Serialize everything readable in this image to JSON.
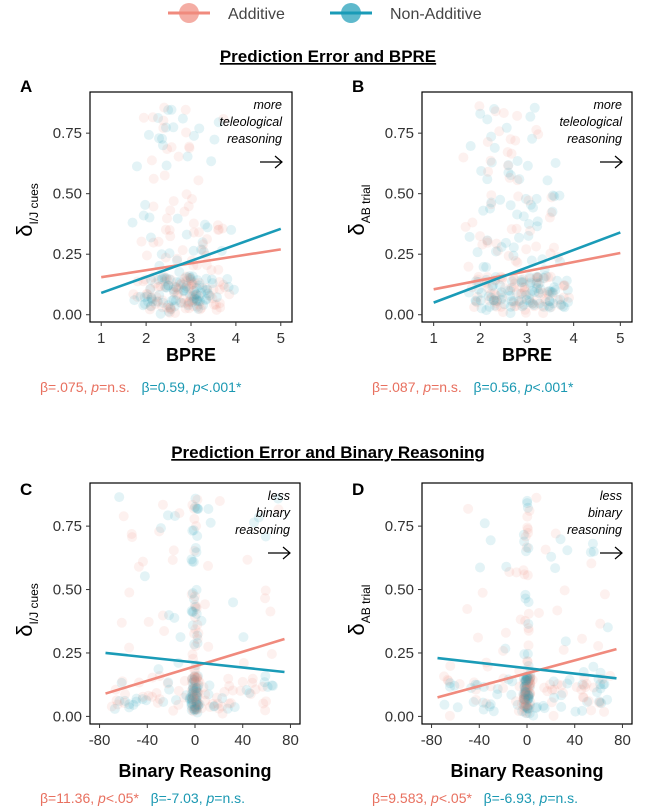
{
  "colors": {
    "additive": "#F08A7D",
    "non_additive": "#1A9BB7",
    "additive_text": "#E8705F",
    "non_additive_text": "#1A98B2"
  },
  "legend": [
    "Additive",
    "Non-Additive"
  ],
  "sections": [
    {
      "title": "Prediction Error and BPRE"
    },
    {
      "title": "Prediction Error and Binary Reasoning"
    }
  ],
  "chart_data": [
    {
      "panel": "A",
      "type": "scatter",
      "xlabel": "BPRE",
      "ylabel": "δ",
      "ylabel_sub": "I/J cues",
      "xlim": [
        0.75,
        5.25
      ],
      "ylim": [
        -0.03,
        0.92
      ],
      "xticks": [
        1,
        2,
        3,
        4,
        5
      ],
      "yticks": [
        "0.00",
        "0.25",
        "0.50",
        "0.75"
      ],
      "annotation": [
        "more",
        "teleological",
        "reasoning"
      ],
      "series": [
        {
          "name": "Additive",
          "fit": {
            "x": [
              1,
              5
            ],
            "y": [
              0.155,
              0.27
            ]
          }
        },
        {
          "name": "Non-Additive",
          "fit": {
            "x": [
              1,
              5
            ],
            "y": [
              0.09,
              0.355
            ]
          }
        }
      ],
      "stats": {
        "additive": {
          "beta": "β=.075, ",
          "p_sym": "p",
          "p_val": "=n.s."
        },
        "non_additive": {
          "beta": "β=0.59, ",
          "p_sym": "p",
          "p_val": "<.001*"
        }
      }
    },
    {
      "panel": "B",
      "type": "scatter",
      "xlabel": "BPRE",
      "ylabel": "δ",
      "ylabel_sub": "AB trial",
      "xlim": [
        0.75,
        5.25
      ],
      "ylim": [
        -0.03,
        0.92
      ],
      "xticks": [
        1,
        2,
        3,
        4,
        5
      ],
      "yticks": [
        "0.00",
        "0.25",
        "0.50",
        "0.75"
      ],
      "annotation": [
        "more",
        "teleological",
        "reasoning"
      ],
      "series": [
        {
          "name": "Additive",
          "fit": {
            "x": [
              1,
              5
            ],
            "y": [
              0.105,
              0.255
            ]
          }
        },
        {
          "name": "Non-Additive",
          "fit": {
            "x": [
              1,
              5
            ],
            "y": [
              0.05,
              0.34
            ]
          }
        }
      ],
      "stats": {
        "additive": {
          "beta": "β=.087, ",
          "p_sym": "p",
          "p_val": "=n.s."
        },
        "non_additive": {
          "beta": "β=0.56, ",
          "p_sym": "p",
          "p_val": "<.001*"
        }
      }
    },
    {
      "panel": "C",
      "type": "scatter",
      "xlabel": "Binary Reasoning",
      "ylabel": "δ",
      "ylabel_sub": "I/J cues",
      "xlim": [
        -88,
        88
      ],
      "ylim": [
        -0.03,
        0.92
      ],
      "xticks": [
        -80,
        -40,
        0,
        40,
        80
      ],
      "yticks": [
        "0.00",
        "0.25",
        "0.50",
        "0.75"
      ],
      "annotation": [
        "less",
        "binary",
        "reasoning"
      ],
      "series": [
        {
          "name": "Additive",
          "fit": {
            "x": [
              -75,
              75
            ],
            "y": [
              0.09,
              0.305
            ]
          }
        },
        {
          "name": "Non-Additive",
          "fit": {
            "x": [
              -75,
              75
            ],
            "y": [
              0.25,
              0.175
            ]
          }
        }
      ],
      "stats": {
        "additive": {
          "beta": "β=11.36, ",
          "p_sym": "p",
          "p_val": "<.05*"
        },
        "non_additive": {
          "beta": "β=-7.03, ",
          "p_sym": "p",
          "p_val": "=n.s."
        }
      }
    },
    {
      "panel": "D",
      "type": "scatter",
      "xlabel": "Binary Reasoning",
      "ylabel": "δ",
      "ylabel_sub": "AB trial",
      "xlim": [
        -88,
        88
      ],
      "ylim": [
        -0.03,
        0.92
      ],
      "xticks": [
        -80,
        -40,
        0,
        40,
        80
      ],
      "yticks": [
        "0.00",
        "0.25",
        "0.50",
        "0.75"
      ],
      "annotation": [
        "less",
        "binary",
        "reasoning"
      ],
      "series": [
        {
          "name": "Additive",
          "fit": {
            "x": [
              -75,
              75
            ],
            "y": [
              0.075,
              0.265
            ]
          }
        },
        {
          "name": "Non-Additive",
          "fit": {
            "x": [
              -75,
              75
            ],
            "y": [
              0.23,
              0.15
            ]
          }
        }
      ],
      "stats": {
        "additive": {
          "beta": "β=9.583, ",
          "p_sym": "p",
          "p_val": "<.05*"
        },
        "non_additive": {
          "beta": "β=-6.93, ",
          "p_sym": "p",
          "p_val": "=n.s."
        }
      }
    }
  ]
}
